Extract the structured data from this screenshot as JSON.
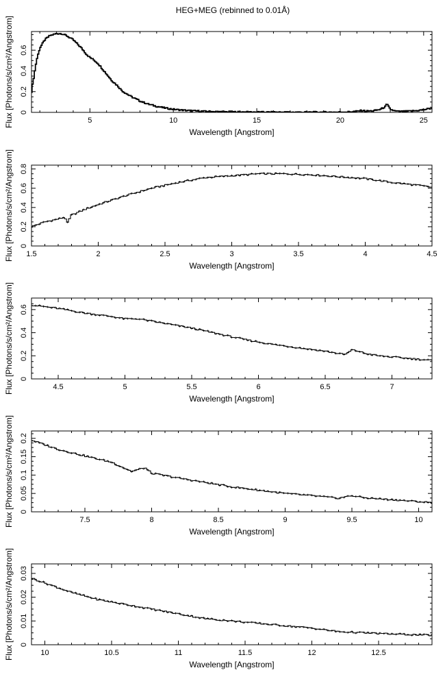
{
  "figure_title": "HEG+MEG (rebinned to 0.01Å)",
  "chart_data": [
    {
      "type": "line",
      "panel": 1,
      "xlabel": "Wavelength [Angstrom]",
      "ylabel": "Flux [Photons/s/cm²/Angstrom]",
      "xlim": [
        1.5,
        25.5
      ],
      "ylim": [
        0,
        0.78
      ],
      "xticks": [
        5,
        10,
        15,
        20,
        25
      ],
      "yticks": [
        0,
        0.2,
        0.4,
        0.6
      ],
      "series": [
        {
          "x": [
            1.5,
            1.7,
            1.8,
            2.0,
            2.3,
            2.6,
            3.0,
            3.3,
            3.6,
            4.0,
            4.5,
            4.8,
            5.0,
            5.2,
            5.5,
            5.8,
            6.0,
            6.3,
            6.5,
            6.7,
            6.8,
            7.0,
            7.5,
            8.0,
            8.5,
            9.0,
            9.5,
            10.0,
            10.5,
            11.0,
            12.0,
            13.0,
            14.0,
            15.0,
            16.0,
            17.0,
            18.0,
            19.0,
            20.0,
            20.5,
            21.0,
            21.3,
            21.6,
            22.0,
            22.4,
            22.7,
            22.8,
            22.9,
            23.0,
            23.3,
            23.6,
            24.0,
            24.5,
            25.0,
            25.3,
            25.5
          ],
          "y": [
            0.2,
            0.4,
            0.5,
            0.62,
            0.7,
            0.74,
            0.76,
            0.76,
            0.74,
            0.7,
            0.62,
            0.56,
            0.53,
            0.51,
            0.47,
            0.41,
            0.37,
            0.31,
            0.28,
            0.25,
            0.23,
            0.2,
            0.15,
            0.11,
            0.08,
            0.058,
            0.042,
            0.03,
            0.022,
            0.016,
            0.009,
            0.006,
            0.004,
            0.003,
            0.002,
            0.002,
            0.002,
            0.002,
            0.003,
            0.005,
            0.01,
            0.018,
            0.012,
            0.015,
            0.028,
            0.055,
            0.08,
            0.055,
            0.03,
            0.012,
            0.008,
            0.01,
            0.015,
            0.025,
            0.035,
            0.04
          ]
        }
      ]
    },
    {
      "type": "line",
      "panel": 2,
      "xlabel": "Wavelength [Angstrom]",
      "ylabel": "Flux [Photons/s/cm²/Angstrom]",
      "xlim": [
        1.5,
        4.5
      ],
      "ylim": [
        0,
        0.84
      ],
      "xticks": [
        1.5,
        2,
        2.5,
        3,
        3.5,
        4,
        4.5
      ],
      "yticks": [
        0,
        0.2,
        0.4,
        0.6,
        0.8
      ],
      "series": [
        {
          "x": [
            1.5,
            1.6,
            1.7,
            1.75,
            1.77,
            1.8,
            1.9,
            2.0,
            2.2,
            2.4,
            2.6,
            2.8,
            3.0,
            3.2,
            3.4,
            3.6,
            3.8,
            4.0,
            4.2,
            4.4,
            4.5
          ],
          "y": [
            0.2,
            0.25,
            0.28,
            0.3,
            0.24,
            0.32,
            0.38,
            0.43,
            0.52,
            0.6,
            0.66,
            0.71,
            0.73,
            0.75,
            0.75,
            0.74,
            0.72,
            0.7,
            0.66,
            0.63,
            0.61
          ]
        }
      ]
    },
    {
      "type": "line",
      "panel": 3,
      "xlabel": "Wavelength [Angstrom]",
      "ylabel": "Flux [Photons/s/cm²/Angstrom]",
      "xlim": [
        4.3,
        7.3
      ],
      "ylim": [
        0,
        0.7
      ],
      "xticks": [
        4.5,
        5,
        5.5,
        6,
        6.5,
        7
      ],
      "yticks": [
        0,
        0.2,
        0.4,
        0.6
      ],
      "series": [
        {
          "x": [
            4.3,
            4.5,
            4.7,
            4.9,
            5.0,
            5.1,
            5.3,
            5.5,
            5.7,
            5.9,
            6.1,
            6.3,
            6.5,
            6.6,
            6.65,
            6.7,
            6.75,
            6.8,
            6.9,
            7.0,
            7.1,
            7.3
          ],
          "y": [
            0.64,
            0.61,
            0.57,
            0.54,
            0.52,
            0.52,
            0.48,
            0.44,
            0.39,
            0.34,
            0.3,
            0.27,
            0.24,
            0.22,
            0.21,
            0.25,
            0.24,
            0.22,
            0.2,
            0.19,
            0.18,
            0.16
          ]
        }
      ]
    },
    {
      "type": "line",
      "panel": 4,
      "xlabel": "Wavelength [Angstrom]",
      "ylabel": "Flux [Photons/s/cm²/Angstrom]",
      "xlim": [
        7.1,
        10.1
      ],
      "ylim": [
        0,
        0.22
      ],
      "xticks": [
        7.5,
        8,
        8.5,
        9,
        9.5,
        10
      ],
      "yticks": [
        0,
        0.05,
        0.1,
        0.15,
        0.2
      ],
      "series": [
        {
          "x": [
            7.1,
            7.3,
            7.5,
            7.7,
            7.85,
            7.95,
            8.0,
            8.2,
            8.4,
            8.6,
            8.8,
            9.0,
            9.2,
            9.4,
            9.5,
            9.6,
            9.8,
            10.1
          ],
          "y": [
            0.195,
            0.17,
            0.152,
            0.135,
            0.11,
            0.12,
            0.105,
            0.092,
            0.08,
            0.068,
            0.059,
            0.05,
            0.044,
            0.037,
            0.044,
            0.038,
            0.033,
            0.025
          ]
        }
      ]
    },
    {
      "type": "line",
      "panel": 5,
      "xlabel": "Wavelength [Angstrom]",
      "ylabel": "Flux [Photons/s/cm²/Angstrom]",
      "xlim": [
        9.9,
        12.9
      ],
      "ylim": [
        0,
        0.034
      ],
      "xticks": [
        10,
        10.5,
        11,
        11.5,
        12,
        12.5
      ],
      "yticks": [
        0,
        0.01,
        0.02,
        0.03
      ],
      "series": [
        {
          "x": [
            9.9,
            10.0,
            10.2,
            10.4,
            10.6,
            10.8,
            11.0,
            11.2,
            11.4,
            11.6,
            11.8,
            12.0,
            12.2,
            12.4,
            12.6,
            12.9
          ],
          "y": [
            0.028,
            0.026,
            0.022,
            0.019,
            0.017,
            0.015,
            0.013,
            0.011,
            0.01,
            0.009,
            0.008,
            0.007,
            0.0055,
            0.005,
            0.0045,
            0.004
          ]
        }
      ]
    }
  ]
}
